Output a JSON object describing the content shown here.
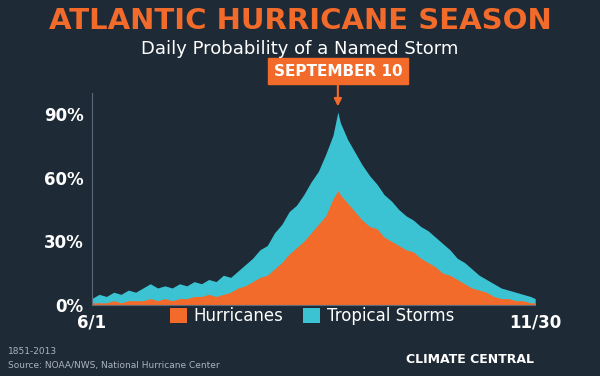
{
  "chart_data": {
    "type": "area",
    "title": "ATLANTIC HURRICANE SEASON",
    "subtitle": "Daily Probability of a Named Storm",
    "x": [
      0,
      3,
      6,
      9,
      12,
      15,
      18,
      21,
      24,
      27,
      30,
      33,
      36,
      39,
      42,
      45,
      48,
      51,
      54,
      57,
      60,
      63,
      66,
      69,
      72,
      75,
      78,
      81,
      84,
      87,
      90,
      93,
      96,
      99,
      101,
      102,
      105,
      108,
      111,
      114,
      117,
      120,
      123,
      126,
      129,
      132,
      135,
      138,
      141,
      144,
      147,
      150,
      153,
      156,
      159,
      162,
      165,
      168,
      171,
      174,
      177,
      180,
      182
    ],
    "series": [
      {
        "name": "Hurricanes",
        "color": "#f26b2b",
        "values": [
          1,
          1,
          1,
          2,
          1,
          2,
          2,
          2,
          3,
          2,
          3,
          2,
          3,
          3,
          4,
          4,
          5,
          4,
          5,
          6,
          8,
          9,
          11,
          13,
          14,
          17,
          20,
          24,
          27,
          30,
          34,
          38,
          42,
          50,
          54,
          52,
          48,
          44,
          40,
          37,
          36,
          32,
          30,
          28,
          26,
          25,
          22,
          20,
          18,
          15,
          14,
          12,
          10,
          8,
          7,
          6,
          4,
          3,
          3,
          2,
          2,
          1,
          1
        ]
      },
      {
        "name": "Tropical Storms",
        "color": "#3cc3d3",
        "values": [
          3,
          5,
          4,
          6,
          5,
          7,
          6,
          8,
          10,
          8,
          9,
          8,
          10,
          9,
          11,
          10,
          12,
          11,
          14,
          13,
          16,
          19,
          22,
          26,
          28,
          34,
          38,
          44,
          47,
          52,
          58,
          63,
          71,
          80,
          91,
          86,
          78,
          72,
          66,
          61,
          57,
          52,
          49,
          45,
          42,
          40,
          37,
          35,
          32,
          29,
          26,
          22,
          20,
          17,
          14,
          12,
          10,
          8,
          7,
          6,
          5,
          4,
          3
        ]
      }
    ],
    "stacked": false,
    "xlim": [
      0,
      182
    ],
    "xticks": [
      {
        "value": 0,
        "label": "6/1"
      },
      {
        "value": 182,
        "label": "11/30"
      }
    ],
    "ylim": [
      0,
      100
    ],
    "yticks": [
      {
        "value": 0,
        "label": "0%"
      },
      {
        "value": 30,
        "label": "30%"
      },
      {
        "value": 60,
        "label": "60%"
      },
      {
        "value": 90,
        "label": "90%"
      }
    ],
    "grid": false,
    "legend": "lower center",
    "annotations": [
      {
        "text": "SEPTEMBER 10",
        "x": 101,
        "y": 91
      }
    ],
    "caption": "1851-2013",
    "source": "Source: NOAA/NWS, National Hurricane Center",
    "credit": "CLIMATE CENTRAL"
  }
}
